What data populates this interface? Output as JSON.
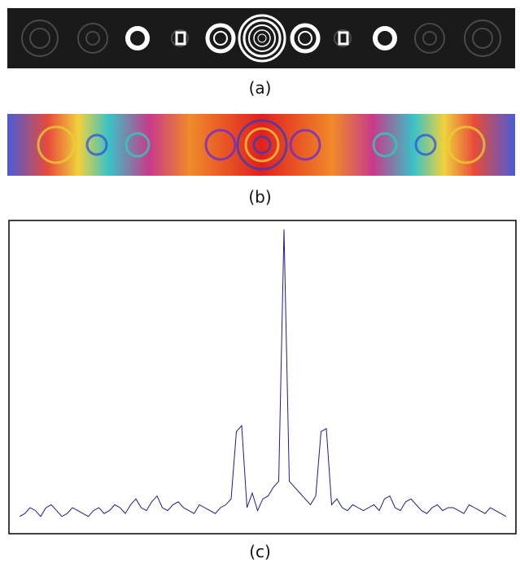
{
  "figure": {
    "captions": {
      "a": "(a)",
      "b": "(b)",
      "c": "(c)"
    }
  },
  "chart_data": {
    "type": "line",
    "title": "",
    "xlabel": "",
    "ylabel": "",
    "grid": false,
    "series": [
      {
        "values": [
          0.02,
          0.03,
          0.05,
          0.04,
          0.02,
          0.05,
          0.06,
          0.04,
          0.02,
          0.03,
          0.05,
          0.04,
          0.03,
          0.02,
          0.04,
          0.05,
          0.03,
          0.04,
          0.06,
          0.05,
          0.03,
          0.06,
          0.08,
          0.05,
          0.04,
          0.07,
          0.09,
          0.05,
          0.04,
          0.06,
          0.07,
          0.05,
          0.04,
          0.03,
          0.06,
          0.05,
          0.04,
          0.03,
          0.05,
          0.06,
          0.08,
          0.31,
          0.33,
          0.05,
          0.1,
          0.04,
          0.08,
          0.09,
          0.12,
          0.14,
          1.0,
          0.14,
          0.12,
          0.1,
          0.08,
          0.06,
          0.09,
          0.31,
          0.32,
          0.06,
          0.08,
          0.05,
          0.04,
          0.06,
          0.05,
          0.04,
          0.05,
          0.06,
          0.04,
          0.08,
          0.09,
          0.05,
          0.04,
          0.07,
          0.08,
          0.06,
          0.04,
          0.03,
          0.05,
          0.06,
          0.04,
          0.05,
          0.05,
          0.04,
          0.03,
          0.06,
          0.05,
          0.04,
          0.03,
          0.05,
          0.04,
          0.03,
          0.02
        ]
      }
    ]
  }
}
